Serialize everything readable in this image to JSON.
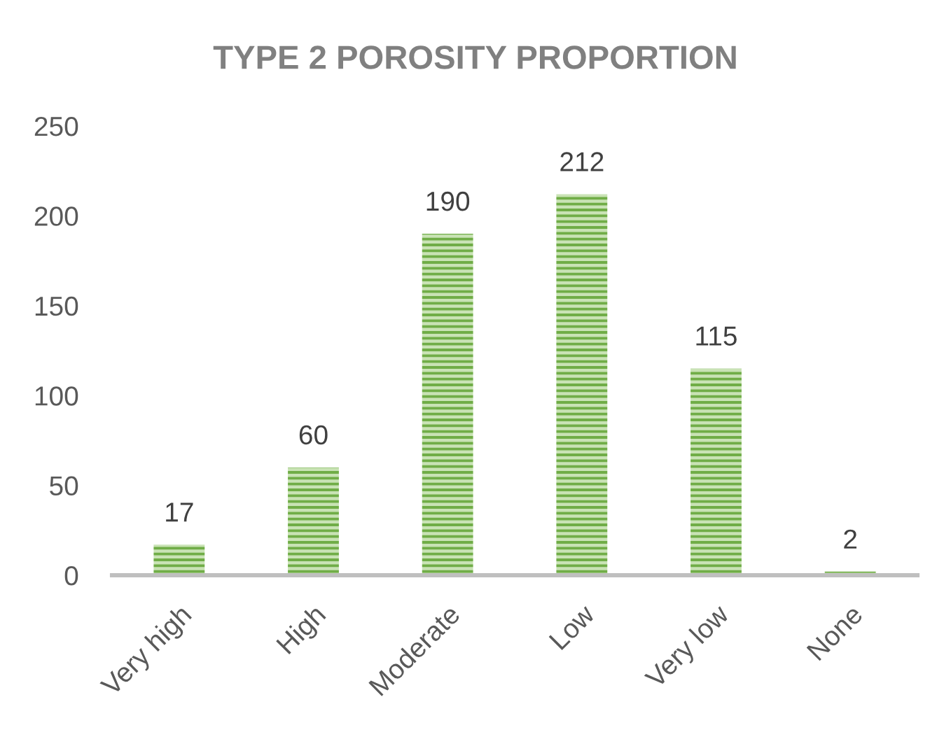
{
  "chart_data": {
    "type": "bar",
    "title": "TYPE 2 POROSITY PROPORTION",
    "categories": [
      "Very high",
      "High",
      "Moderate",
      "Low",
      "Very low",
      "None"
    ],
    "values": [
      17,
      60,
      190,
      212,
      115,
      2
    ],
    "color": "#70ad47",
    "ylim": [
      0,
      250
    ],
    "yticks": [
      0,
      50,
      100,
      150,
      200,
      250
    ],
    "grid": false,
    "data_labels": true
  }
}
